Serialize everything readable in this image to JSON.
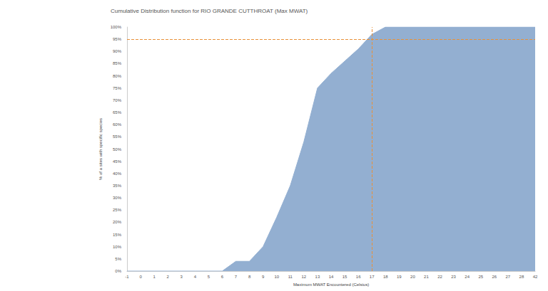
{
  "chart_data": {
    "type": "area",
    "title": "Cumulative Distribution function for RIO GRANDE CUTTHROAT (Max MWAT)",
    "x_label": "Maximum MWAT Encountered (Celsius)",
    "y_label": "% of a sites with specific species",
    "categories": [
      -1,
      0,
      1,
      2,
      3,
      4,
      5,
      6,
      7,
      8,
      9,
      10,
      11,
      12,
      13,
      14,
      15,
      16,
      17,
      18,
      19,
      20,
      21,
      22,
      23,
      24,
      25,
      26,
      27,
      28,
      42
    ],
    "values": [
      0,
      0,
      0,
      0,
      0,
      0,
      0,
      0,
      4,
      4,
      10,
      22,
      35,
      53,
      75,
      81,
      86,
      91,
      97,
      100,
      100,
      100,
      100,
      100,
      100,
      100,
      100,
      100,
      100,
      100,
      100
    ],
    "color": "#93afd1",
    "ylim": [
      0,
      100
    ],
    "yticks": [
      {
        "value": 0,
        "label": "0%"
      },
      {
        "value": 5,
        "label": "5%"
      },
      {
        "value": 10,
        "label": "10%"
      },
      {
        "value": 15,
        "label": "15%"
      },
      {
        "value": 20,
        "label": "20%"
      },
      {
        "value": 25,
        "label": "25%"
      },
      {
        "value": 30,
        "label": "30%"
      },
      {
        "value": 35,
        "label": "35%"
      },
      {
        "value": 40,
        "label": "40%"
      },
      {
        "value": 45,
        "label": "45%"
      },
      {
        "value": 50,
        "label": "50%"
      },
      {
        "value": 55,
        "label": "55%"
      },
      {
        "value": 60,
        "label": "60%"
      },
      {
        "value": 65,
        "label": "65%"
      },
      {
        "value": 70,
        "label": "70%"
      },
      {
        "value": 75,
        "label": "75%"
      },
      {
        "value": 80,
        "label": "80%"
      },
      {
        "value": 85,
        "label": "85%"
      },
      {
        "value": 90,
        "label": "90%"
      },
      {
        "value": 95,
        "label": "95%"
      },
      {
        "value": 100,
        "label": "100%"
      }
    ],
    "grid": false,
    "reference_lines": {
      "x": 17,
      "y": 95,
      "color": "#e8913a"
    }
  }
}
